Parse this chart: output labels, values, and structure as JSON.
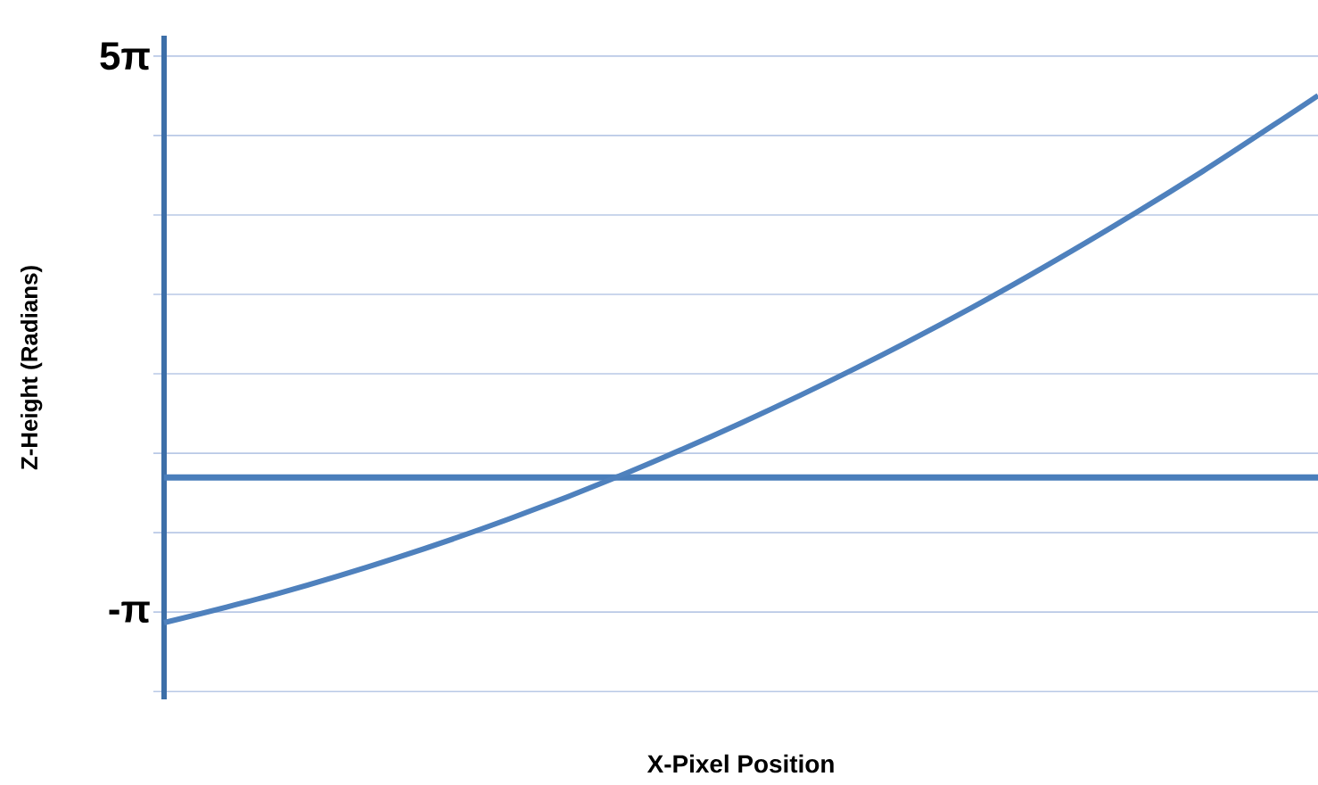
{
  "chart_data": {
    "type": "line",
    "xlabel": "X-Pixel Position",
    "ylabel": "Z-Height (Radians)",
    "categories": [
      null,
      null,
      null,
      null,
      null,
      null,
      null,
      null,
      null,
      null,
      null
    ],
    "series": [
      {
        "color": "#4f81bd",
        "values": [
          -3.5,
          -2.5,
          -1.32,
          0.03,
          1.56,
          3.27,
          5.14,
          7.18,
          9.41,
          11.8,
          14.37
        ]
      }
    ],
    "ylim": [
      -6.1,
      16.4
    ],
    "yticks": [
      {
        "value": -5.834,
        "label": null
      },
      {
        "value": -3.1416,
        "label": "-π"
      },
      {
        "value": -0.449,
        "label": null
      },
      {
        "value": 2.244,
        "label": null
      },
      {
        "value": 4.937,
        "label": null
      },
      {
        "value": 7.63,
        "label": null
      },
      {
        "value": 10.323,
        "label": null
      },
      {
        "value": 13.016,
        "label": null
      },
      {
        "value": 15.708,
        "label": "5π"
      }
    ],
    "ref_lines": [
      {
        "axis": "y",
        "value": 1.42,
        "color": "#4a7ebb"
      }
    ],
    "grid": "y",
    "tick_labels": "y",
    "line_style": "solid",
    "marker": "none"
  }
}
